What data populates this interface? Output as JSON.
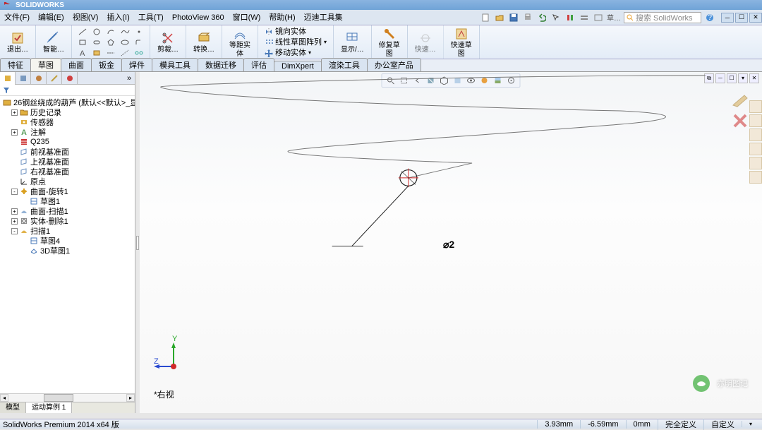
{
  "app": {
    "brand": "SOLIDWORKS"
  },
  "menus": [
    "文件(F)",
    "编辑(E)",
    "视图(V)",
    "插入(I)",
    "工具(T)",
    "PhotoView 360",
    "窗口(W)",
    "帮助(H)",
    "迈迪工具集"
  ],
  "quick_divider": "┊",
  "search": {
    "placeholder": "搜索 SolidWorks"
  },
  "ribbon": {
    "exit_sketch": "退出…",
    "smart_dim": "智能…",
    "trim": "剪裁…",
    "convert": "转换…",
    "offset": {
      "l1": "等距实",
      "l2": "体"
    },
    "mirror": "镜向实体",
    "pattern": "线性草图阵列",
    "move": "移动实体",
    "display": {
      "l1": "显示/…",
      "l2": ""
    },
    "repair": {
      "l1": "修复草",
      "l2": "图"
    },
    "quick": "快速…",
    "quick_sketch": {
      "l1": "快速草",
      "l2": "图"
    }
  },
  "tabs": [
    "特征",
    "草图",
    "曲面",
    "钣金",
    "焊件",
    "模具工具",
    "数据迁移",
    "评估",
    "DimXpert",
    "渲染工具",
    "办公室产品"
  ],
  "active_tab": 1,
  "tree": {
    "root": "26钢丝绕成的葫芦  (默认<<默认>_显示",
    "items": [
      {
        "d": 1,
        "exp": "+",
        "ico": "folder",
        "color": "#e0b040",
        "txt": "历史记录"
      },
      {
        "d": 1,
        "exp": "",
        "ico": "sensor",
        "color": "#e0b040",
        "txt": "传感器"
      },
      {
        "d": 1,
        "exp": "+",
        "ico": "note",
        "color": "#5a9e5a",
        "txt": "注解"
      },
      {
        "d": 1,
        "exp": "",
        "ico": "mat",
        "color": "#cc3333",
        "txt": "Q235"
      },
      {
        "d": 1,
        "exp": "",
        "ico": "plane",
        "color": "#6a8fbf",
        "txt": "前视基准面"
      },
      {
        "d": 1,
        "exp": "",
        "ico": "plane",
        "color": "#6a8fbf",
        "txt": "上视基准面"
      },
      {
        "d": 1,
        "exp": "",
        "ico": "plane",
        "color": "#6a8fbf",
        "txt": "右视基准面"
      },
      {
        "d": 1,
        "exp": "",
        "ico": "origin",
        "color": "#333333",
        "txt": "原点"
      },
      {
        "d": 1,
        "exp": "-",
        "ico": "revolve",
        "color": "#d9a020",
        "txt": "曲面-旋转1"
      },
      {
        "d": 2,
        "exp": "",
        "ico": "sketch",
        "color": "#4a7ab8",
        "txt": "草图1"
      },
      {
        "d": 1,
        "exp": "+",
        "ico": "sweep",
        "color": "#7aa0cc",
        "txt": "曲面-扫描1"
      },
      {
        "d": 1,
        "exp": "+",
        "ico": "delete",
        "color": "#888888",
        "txt": "实体-删除1"
      },
      {
        "d": 1,
        "exp": "-",
        "ico": "sweep",
        "color": "#d9a020",
        "txt": "扫描1"
      },
      {
        "d": 2,
        "exp": "",
        "ico": "sketch",
        "color": "#4a7ab8",
        "txt": "草图4"
      },
      {
        "d": 2,
        "exp": "",
        "ico": "sketch3d",
        "color": "#4a7ab8",
        "txt": "3D草图1"
      }
    ]
  },
  "model_tabs": [
    "模型",
    "运动算例 1"
  ],
  "viewport": {
    "dimension": "⌀2",
    "view_label": "*右视",
    "triad": {
      "y": "Y",
      "z": "Z",
      "y_color": "#2aa82a",
      "z_color": "#2a4ad0",
      "x_color": "#d02a2a"
    },
    "spiral_color": "#777777",
    "circle_color": "#222222",
    "leader_color": "#222222"
  },
  "watermark": "亦明图记",
  "status": {
    "left": "SolidWorks Premium 2014 x64 版",
    "x": "3.93mm",
    "y": "-6.59mm",
    "z": "0mm",
    "def": "完全定义",
    "custom": "自定义"
  },
  "colors": {
    "titlebar": "#6fa3d7",
    "accent": "#d02a2a"
  }
}
